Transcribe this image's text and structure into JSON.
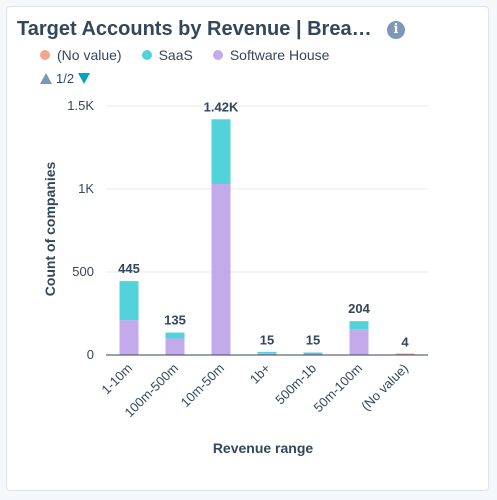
{
  "chart_data": {
    "type": "bar",
    "stacked": true,
    "title": "Target Accounts by Revenue | Brea…",
    "xlabel": "Revenue range",
    "ylabel": "Count of companies",
    "categories": [
      "1-10m",
      "100m-500m",
      "10m-50m",
      "1b+",
      "500m-1b",
      "50m-100m",
      "(No value)"
    ],
    "series": [
      {
        "name": "(No value)",
        "color": "#f2a68b",
        "values": [
          0,
          0,
          0,
          0,
          0,
          0,
          4
        ]
      },
      {
        "name": "Software House",
        "color": "#c3aaea",
        "values": [
          210,
          100,
          1030,
          10,
          5,
          155,
          0
        ]
      },
      {
        "name": "SaaS",
        "color": "#51d3d9",
        "values": [
          235,
          35,
          390,
          5,
          10,
          49,
          0
        ]
      }
    ],
    "legend_order": [
      "(No value)",
      "SaaS",
      "Software House"
    ],
    "totals": [
      "445",
      "135",
      "1.42K",
      "15",
      "15",
      "204",
      "4"
    ],
    "ylim": [
      0,
      1500
    ],
    "yticks": [
      {
        "value": 0,
        "label": "0"
      },
      {
        "value": 500,
        "label": "500"
      },
      {
        "value": 1000,
        "label": "1K"
      },
      {
        "value": 1500,
        "label": "1.5K"
      }
    ],
    "grid": true,
    "legend_position": "top-left"
  },
  "ui": {
    "info_icon": "info-icon",
    "info_glyph": "i",
    "pager_label": "1/2",
    "pager_prev_icon": "triangle-up-icon",
    "pager_next_icon": "triangle-down-icon"
  }
}
